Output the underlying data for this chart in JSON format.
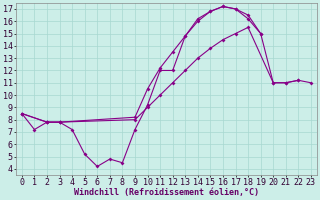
{
  "xlabel": "Windchill (Refroidissement éolien,°C)",
  "xlim": [
    -0.5,
    23.5
  ],
  "ylim": [
    3.5,
    17.5
  ],
  "xticks": [
    0,
    1,
    2,
    3,
    4,
    5,
    6,
    7,
    8,
    9,
    10,
    11,
    12,
    13,
    14,
    15,
    16,
    17,
    18,
    19,
    20,
    21,
    22,
    23
  ],
  "yticks": [
    4,
    5,
    6,
    7,
    8,
    9,
    10,
    11,
    12,
    13,
    14,
    15,
    16,
    17
  ],
  "bg_color": "#cceee8",
  "grid_color": "#a8d8d0",
  "line_color": "#880088",
  "series1_x": [
    0,
    1,
    2,
    3,
    4,
    5,
    6,
    7,
    8,
    9,
    10,
    11,
    12,
    13,
    14,
    15,
    16,
    17,
    18,
    19,
    20,
    21,
    22
  ],
  "series1_y": [
    8.5,
    7.2,
    7.8,
    7.8,
    7.2,
    5.2,
    4.2,
    4.8,
    4.5,
    7.2,
    9.2,
    12.0,
    12.0,
    14.8,
    16.0,
    16.8,
    17.2,
    17.0,
    16.2,
    15.0,
    11.0,
    11.0,
    11.2
  ],
  "series2_x": [
    0,
    2,
    3,
    9,
    10,
    11,
    12,
    13,
    14,
    15,
    16,
    17,
    18,
    20,
    21,
    22,
    23
  ],
  "series2_y": [
    8.5,
    7.8,
    7.8,
    8.0,
    9.0,
    10.0,
    11.0,
    12.0,
    13.0,
    13.8,
    14.5,
    15.0,
    15.5,
    11.0,
    11.0,
    11.2,
    11.0
  ],
  "series3_x": [
    0,
    2,
    3,
    9,
    10,
    11,
    12,
    13,
    14,
    15,
    16,
    17,
    18,
    19
  ],
  "series3_y": [
    8.5,
    7.8,
    7.8,
    8.2,
    10.5,
    12.2,
    13.5,
    14.8,
    16.2,
    16.8,
    17.2,
    17.0,
    16.5,
    15.0
  ],
  "font_size": 6,
  "marker": "D",
  "marker_size": 2.0,
  "lw": 0.8
}
